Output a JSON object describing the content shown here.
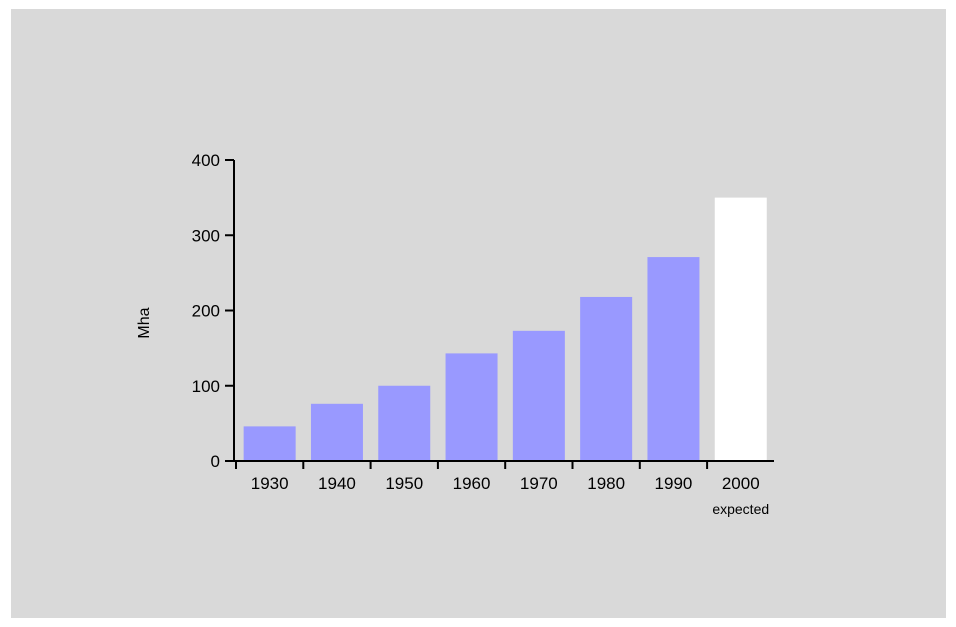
{
  "chart_data": {
    "type": "bar",
    "title": "",
    "xlabel": "",
    "ylabel": "Mha",
    "ylim": [
      0,
      400
    ],
    "yticks": [
      0,
      100,
      200,
      300,
      400
    ],
    "categories": [
      "1930",
      "1940",
      "1950",
      "1960",
      "1970",
      "1980",
      "1990",
      "2000"
    ],
    "category_sublabels": [
      "",
      "",
      "",
      "",
      "",
      "",
      "",
      "expected"
    ],
    "values": [
      46,
      76,
      100,
      143,
      173,
      218,
      271,
      350
    ],
    "bar_colors": [
      "#9999ff",
      "#9999ff",
      "#9999ff",
      "#9999ff",
      "#9999ff",
      "#9999ff",
      "#9999ff",
      "#ffffff"
    ],
    "grid": false,
    "background": "#d9d9d9"
  }
}
